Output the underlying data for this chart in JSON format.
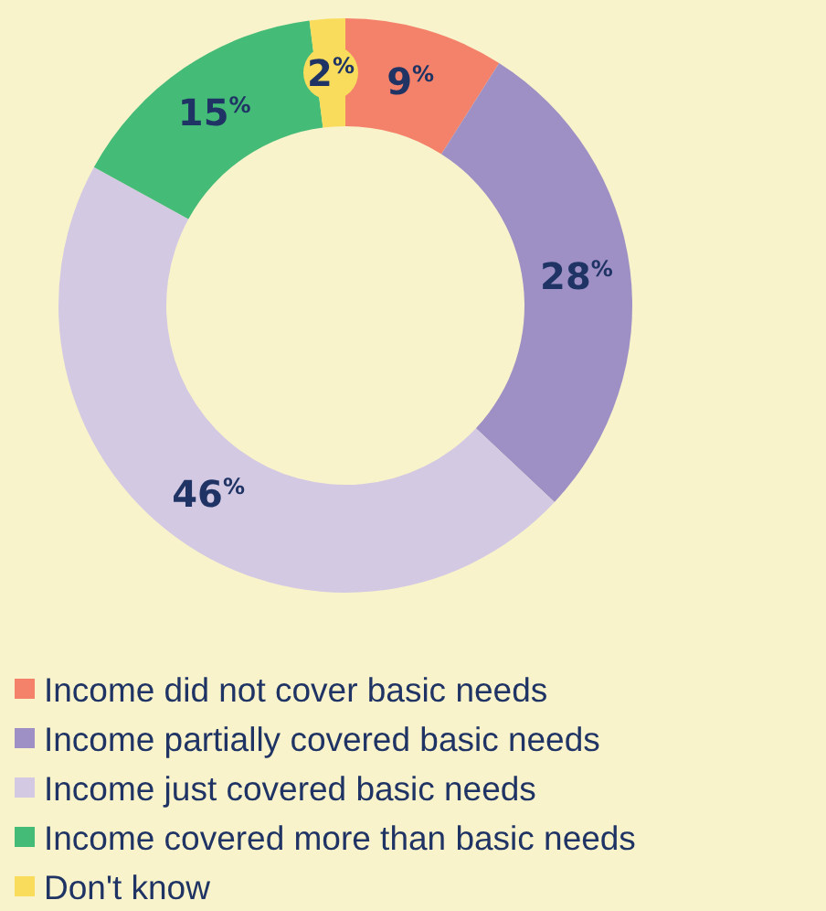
{
  "chart_data": {
    "type": "donut",
    "categories": [
      "Income did not cover basic needs",
      "Income partially covered basic needs",
      "Income just covered basic needs",
      "Income covered more than basic needs",
      "Don't know"
    ],
    "values": [
      9,
      28,
      46,
      15,
      2
    ],
    "colors": [
      "#f4826a",
      "#9e90c5",
      "#d4c9e3",
      "#45bb78",
      "#f9dc5c"
    ],
    "value_labels": [
      "9$^{%}$",
      "28$^{%}$",
      "46$^{%}$",
      "15$^{%}$",
      "2$^{%}$"
    ],
    "legend": "bottom"
  }
}
